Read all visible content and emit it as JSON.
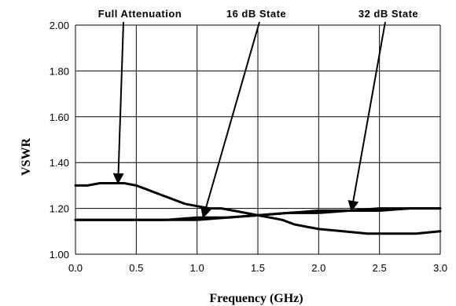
{
  "chart_data": {
    "type": "line",
    "xlabel": "Frequency (GHz)",
    "ylabel": "VSWR",
    "xlim": [
      0.0,
      3.0
    ],
    "ylim": [
      1.0,
      2.0
    ],
    "x_ticks": [
      0.0,
      0.5,
      1.0,
      1.5,
      2.0,
      2.5,
      3.0
    ],
    "x_tick_labels": [
      "0.0",
      "0.5",
      "1.0",
      "1.5",
      "2.0",
      "2.5",
      "3.0"
    ],
    "y_ticks": [
      1.0,
      1.2,
      1.4,
      1.6,
      1.8,
      2.0
    ],
    "y_tick_labels": [
      "1.00",
      "1.20",
      "1.40",
      "1.60",
      "1.80",
      "2.00"
    ],
    "grid": true,
    "line_color": "#000000",
    "series": [
      {
        "name": "Full Attenuation",
        "x": [
          0.0,
          0.1,
          0.2,
          0.3,
          0.4,
          0.5,
          0.6,
          0.7,
          0.8,
          0.9,
          1.0,
          1.1,
          1.2,
          1.3,
          1.4,
          1.5,
          1.6,
          1.7,
          1.8,
          1.9,
          2.0,
          2.2,
          2.4,
          2.5,
          2.6,
          2.8,
          3.0
        ],
        "y": [
          1.3,
          1.3,
          1.31,
          1.31,
          1.31,
          1.3,
          1.28,
          1.26,
          1.24,
          1.22,
          1.21,
          1.2,
          1.2,
          1.19,
          1.18,
          1.17,
          1.16,
          1.15,
          1.13,
          1.12,
          1.11,
          1.1,
          1.09,
          1.09,
          1.09,
          1.09,
          1.1
        ]
      },
      {
        "name": "16 dB State",
        "x": [
          0.0,
          0.25,
          0.5,
          0.75,
          1.0,
          1.25,
          1.5,
          1.75,
          2.0,
          2.25,
          2.5,
          2.75,
          3.0
        ],
        "y": [
          1.15,
          1.15,
          1.15,
          1.15,
          1.16,
          1.16,
          1.17,
          1.18,
          1.18,
          1.19,
          1.19,
          1.2,
          1.2
        ]
      },
      {
        "name": "32 dB State",
        "x": [
          0.0,
          0.25,
          0.5,
          0.75,
          1.0,
          1.25,
          1.5,
          1.75,
          2.0,
          2.25,
          2.5,
          2.75,
          3.0
        ],
        "y": [
          1.15,
          1.15,
          1.15,
          1.15,
          1.15,
          1.16,
          1.17,
          1.18,
          1.19,
          1.19,
          1.2,
          1.2,
          1.2
        ]
      }
    ],
    "annotations": [
      {
        "text": "Full Attenuation",
        "target_x": 0.35,
        "target_y": 1.31
      },
      {
        "text": "16 dB State",
        "target_x": 1.05,
        "target_y": 1.16
      },
      {
        "text": "32 dB State",
        "target_x": 2.27,
        "target_y": 1.19
      }
    ]
  }
}
